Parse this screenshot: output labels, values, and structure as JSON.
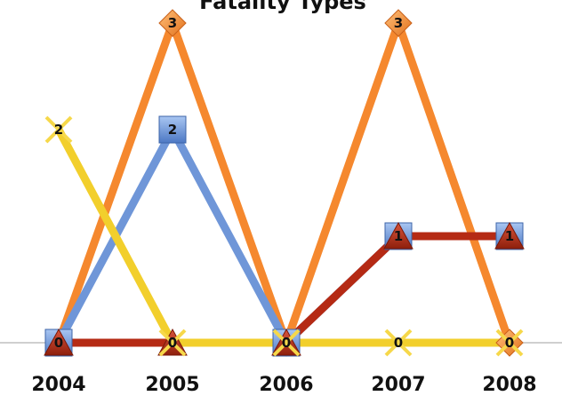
{
  "chart_data": {
    "type": "line",
    "title": "Fatality Types",
    "xlabel": "",
    "ylabel": "",
    "categories": [
      "2004",
      "2005",
      "2006",
      "2007",
      "2008"
    ],
    "ylim": [
      0,
      3
    ],
    "grid": false,
    "legend": "none",
    "series": [
      {
        "color": "#f5882e",
        "marker": "diamond",
        "values": [
          0,
          3,
          0,
          3,
          0
        ]
      },
      {
        "color": "#6f96d8",
        "marker": "square",
        "values": [
          0,
          2,
          0,
          1,
          1
        ]
      },
      {
        "color": "#b52a14",
        "marker": "triangle",
        "values": [
          0,
          0,
          0,
          1,
          1
        ]
      },
      {
        "color": "#f2cf2c",
        "marker": "x",
        "values": [
          2,
          0,
          0,
          0,
          0
        ]
      }
    ]
  }
}
